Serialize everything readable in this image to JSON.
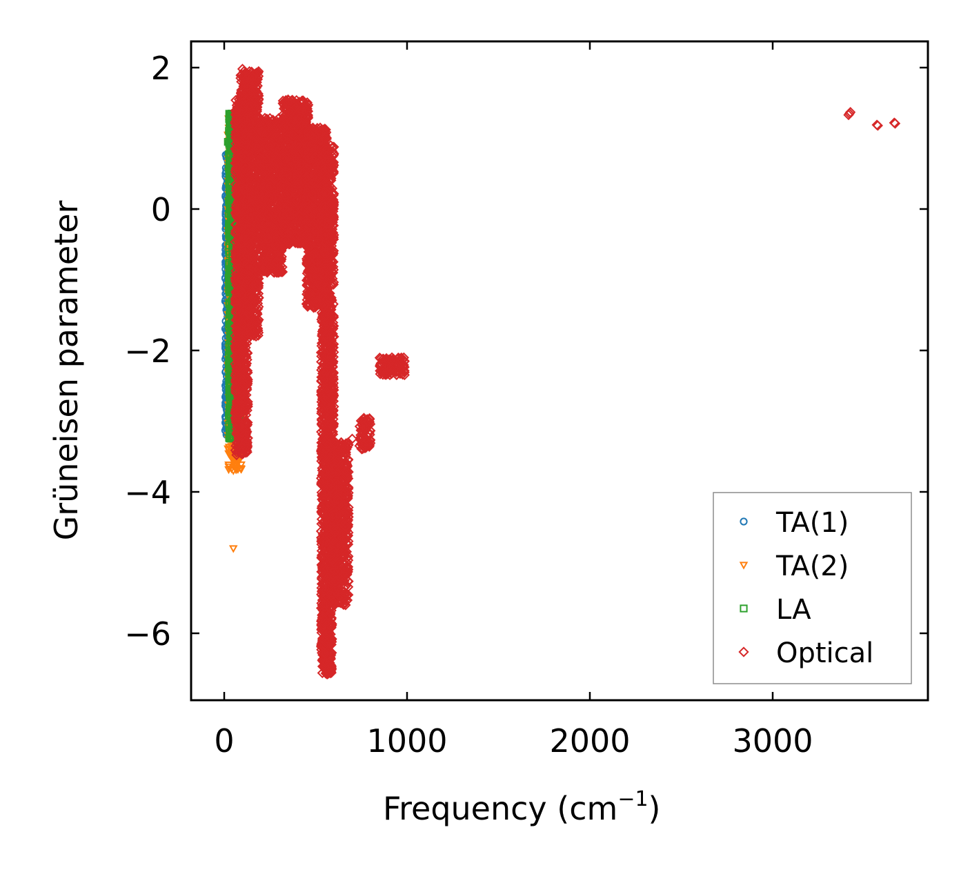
{
  "chart_data": {
    "type": "scatter",
    "title": "",
    "xlabel": "Frequency (cm",
    "xlabel_sup": "−1",
    "xlabel_end": ")",
    "ylabel": "Grüneisen parameter",
    "xlim": [
      -180,
      3850
    ],
    "ylim": [
      -7.0,
      2.4
    ],
    "xticks": [
      0,
      1000,
      2000,
      3000
    ],
    "xtick_labels": [
      "0",
      "1000",
      "2000",
      "3000"
    ],
    "yticks": [
      2,
      0,
      -2,
      -4,
      -6
    ],
    "ytick_labels": [
      "2",
      "0",
      "−2",
      "−4",
      "−6"
    ],
    "grid": false,
    "legend_position": "lower-right",
    "series": [
      {
        "name": "TA(1)",
        "marker": "circle",
        "color": "#1f77b4",
        "clusters": [
          {
            "x": [
              5,
              75
            ],
            "y": [
              -3.2,
              0.8
            ]
          }
        ],
        "points": [
          [
            20,
            -3.15
          ],
          [
            30,
            -2.2
          ],
          [
            25,
            -1.85
          ],
          [
            40,
            -2.6
          ],
          [
            35,
            -2.95
          ],
          [
            50,
            0.8
          ],
          [
            10,
            0.0
          ],
          [
            20,
            0.25
          ],
          [
            30,
            -1.2
          ],
          [
            45,
            -2.4
          ],
          [
            55,
            0.6
          ]
        ]
      },
      {
        "name": "TA(2)",
        "marker": "triangle-down",
        "color": "#ff7f0e",
        "clusters": [
          {
            "x": [
              20,
              95
            ],
            "y": [
              -3.7,
              1.35
            ]
          }
        ],
        "points": [
          [
            50,
            -4.8
          ],
          [
            50,
            -3.7
          ],
          [
            55,
            -3.4
          ],
          [
            60,
            -3.2
          ],
          [
            20,
            1.05
          ],
          [
            40,
            0.55
          ],
          [
            60,
            -2.8
          ],
          [
            45,
            -1.5
          ]
        ]
      },
      {
        "name": "LA",
        "marker": "square",
        "color": "#2ca02c",
        "clusters": [
          {
            "x": [
              25,
              90
            ],
            "y": [
              -3.25,
              1.35
            ]
          }
        ],
        "points": [
          [
            40,
            1.35
          ],
          [
            20,
            0.95
          ],
          [
            60,
            -2.85
          ],
          [
            55,
            -2.5
          ],
          [
            65,
            -3.2
          ],
          [
            50,
            -2.0
          ],
          [
            70,
            -2.3
          ],
          [
            60,
            0.9
          ]
        ]
      },
      {
        "name": "Optical",
        "marker": "diamond",
        "color": "#d62728",
        "clusters": [
          {
            "x": [
              60,
              130
            ],
            "y": [
              -3.5,
              1.55
            ]
          },
          {
            "x": [
              90,
              190
            ],
            "y": [
              -1.8,
              1.95
            ]
          },
          {
            "x": [
              190,
              320
            ],
            "y": [
              -0.9,
              1.3
            ]
          },
          {
            "x": [
              320,
              460
            ],
            "y": [
              -0.5,
              1.55
            ]
          },
          {
            "x": [
              450,
              560
            ],
            "y": [
              -1.4,
              1.15
            ]
          },
          {
            "x": [
              530,
              600
            ],
            "y": [
              -3.2,
              0.9
            ]
          },
          {
            "x": [
              530,
              590
            ],
            "y": [
              -6.6,
              -3.2
            ]
          },
          {
            "x": [
              580,
              680
            ],
            "y": [
              -5.6,
              -3.3
            ]
          },
          {
            "x": [
              740,
              800
            ],
            "y": [
              -3.4,
              -2.95
            ]
          },
          {
            "x": [
              850,
              990
            ],
            "y": [
              -2.35,
              -2.1
            ]
          }
        ],
        "points": [
          [
            3420,
            1.35
          ],
          [
            3415,
            1.33
          ],
          [
            3425,
            1.37
          ],
          [
            3570,
            1.19
          ],
          [
            3575,
            1.18
          ],
          [
            3665,
            1.22
          ],
          [
            3670,
            1.21
          ],
          [
            100,
            1.98
          ],
          [
            95,
            -1.85
          ],
          [
            700,
            -3.25
          ],
          [
            640,
            -3.3
          ]
        ]
      }
    ]
  }
}
